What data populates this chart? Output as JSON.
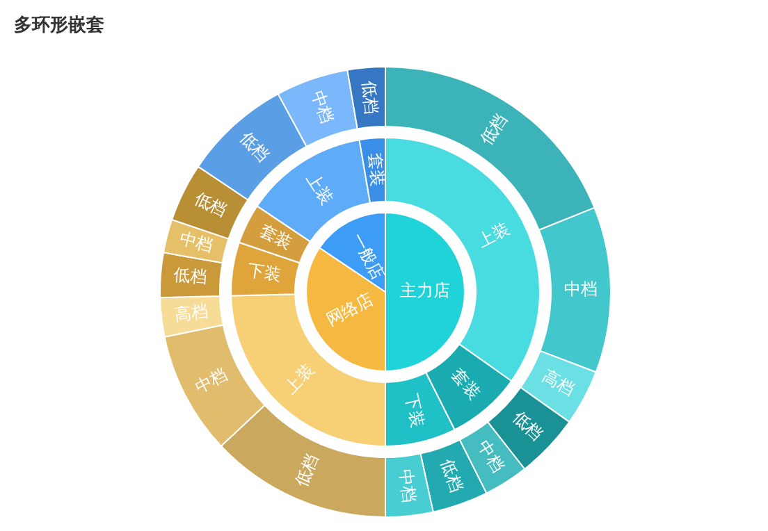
{
  "chart_data": [
    {
      "type": "pie",
      "title": "多环形嵌套",
      "categories": [
        "主力店",
        "网络店",
        "一般店"
      ],
      "values": [
        50,
        34.4,
        15.6
      ],
      "colors": [
        "#1fd3d8",
        "#f5b942",
        "#3d9cf5"
      ]
    },
    {
      "type": "donut",
      "categories": [
        "上装",
        "套装",
        "下装",
        "上装",
        "下装",
        "套装",
        "上装",
        "套装"
      ],
      "values": [
        34.8,
        7.8,
        7.4,
        24.6,
        5.6,
        4.2,
        12.9,
        2.7
      ],
      "colors": [
        "#48dbe0",
        "#1aabb0",
        "#1fc0c6",
        "#f7cf74",
        "#e0a53a",
        "#d49e3f",
        "#5eabf7",
        "#3a8ee6"
      ]
    },
    {
      "type": "donut",
      "categories": [
        "低档",
        "中档",
        "高档",
        "低档",
        "中档",
        "低档",
        "中档",
        "低档",
        "中档",
        "高档",
        "低档",
        "中档",
        "低档",
        "低档",
        "中档",
        "低档"
      ],
      "values": [
        18.9,
        11.9,
        4.0,
        4.6,
        3.2,
        4.0,
        3.4,
        13.0,
        8.8,
        2.8,
        3.2,
        2.4,
        4.2,
        7.7,
        5.2,
        2.7
      ],
      "colors": [
        "#3bb3b8",
        "#42c8cc",
        "#6ae0e4",
        "#1a9295",
        "#45bcc0",
        "#22aab0",
        "#48cdd2",
        "#caa95e",
        "#e0bc6c",
        "#f7dc98",
        "#c9993a",
        "#e6c068",
        "#b88f35",
        "#5a9fe6",
        "#7ab8fb",
        "#3577c2"
      ]
    }
  ]
}
